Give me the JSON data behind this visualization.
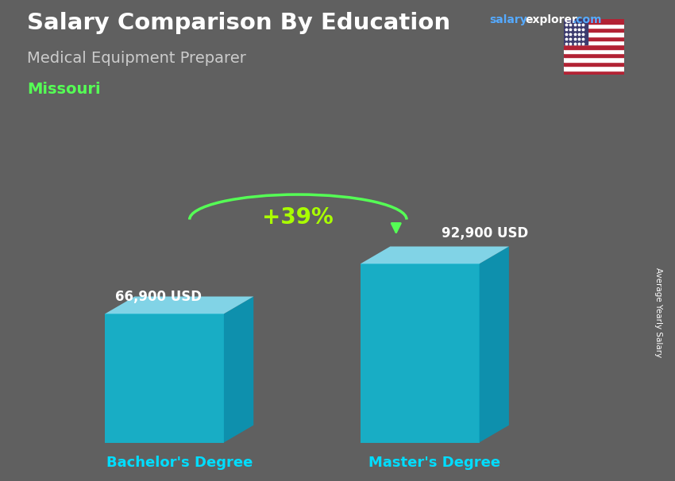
{
  "title": "Salary Comparison By Education",
  "subtitle": "Medical Equipment Preparer",
  "location": "Missouri",
  "categories": [
    "Bachelor's Degree",
    "Master's Degree"
  ],
  "values": [
    66900,
    92900
  ],
  "value_labels": [
    "66,900 USD",
    "92,900 USD"
  ],
  "bar_color_face": "#00C8E8",
  "bar_color_right": "#0099BB",
  "bar_color_top": "#88E8FF",
  "pct_change": "+39%",
  "ylabel": "Average Yearly Salary",
  "bg_color": "#606060",
  "title_color": "#ffffff",
  "subtitle_color": "#cccccc",
  "location_color": "#55ff55",
  "category_label_color": "#00DDFF",
  "pct_color": "#aaff00",
  "arrow_color": "#55ff55",
  "bar_alpha": 0.75,
  "site_salary_color": "#55aaff",
  "site_explorer_color": "#ffffff",
  "site_com_color": "#55aaff"
}
